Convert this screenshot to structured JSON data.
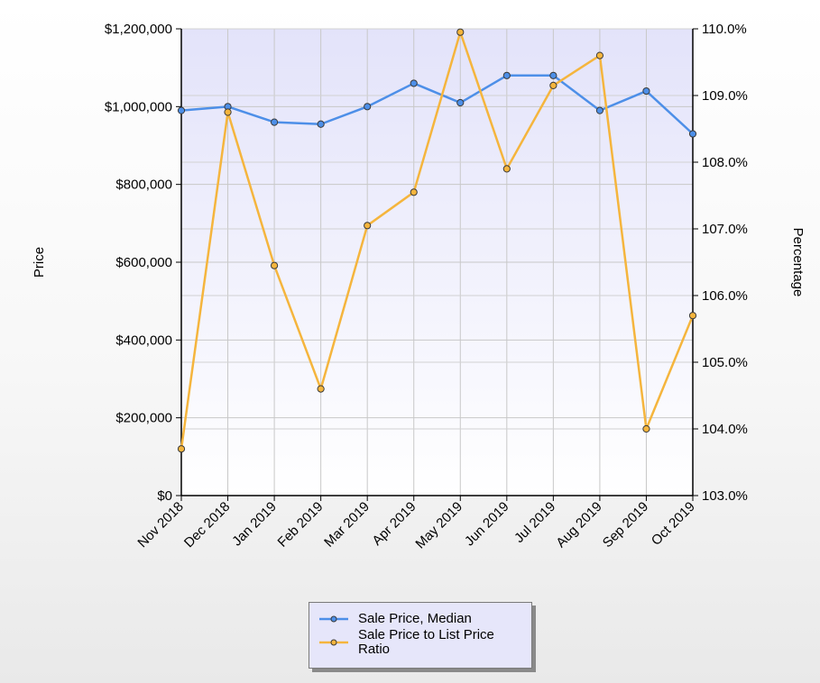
{
  "chart_data": {
    "type": "line",
    "categories": [
      "Nov 2018",
      "Dec 2018",
      "Jan 2019",
      "Feb 2019",
      "Mar 2019",
      "Apr 2019",
      "May 2019",
      "Jun 2019",
      "Jul 2019",
      "Aug 2019",
      "Sep 2019",
      "Oct 2019"
    ],
    "series": [
      {
        "name": "Sale Price, Median",
        "axis": "left",
        "color": "#4d8fe8",
        "values": [
          990000,
          1000000,
          960000,
          955000,
          1000000,
          1060000,
          1010000,
          1080000,
          1080000,
          990000,
          1040000,
          930000
        ]
      },
      {
        "name": "Sale Price to List Price Ratio",
        "axis": "right",
        "color": "#f5b53d",
        "values": [
          103.7,
          108.75,
          106.45,
          104.6,
          107.05,
          107.55,
          109.95,
          107.9,
          109.15,
          109.6,
          104.0,
          105.7
        ]
      }
    ],
    "ylabel": "Price",
    "y2label": "Percentage",
    "ylim": [
      0,
      1200000
    ],
    "y2lim": [
      103.0,
      110.0
    ],
    "yticks": [
      "$0",
      "$200,000",
      "$400,000",
      "$600,000",
      "$800,000",
      "$1,000,000",
      "$1,200,000"
    ],
    "y2ticks": [
      "103.0%",
      "104.0%",
      "105.0%",
      "106.0%",
      "107.0%",
      "108.0%",
      "109.0%",
      "110.0%"
    ],
    "grid": true,
    "legend_position": "bottom-center"
  }
}
